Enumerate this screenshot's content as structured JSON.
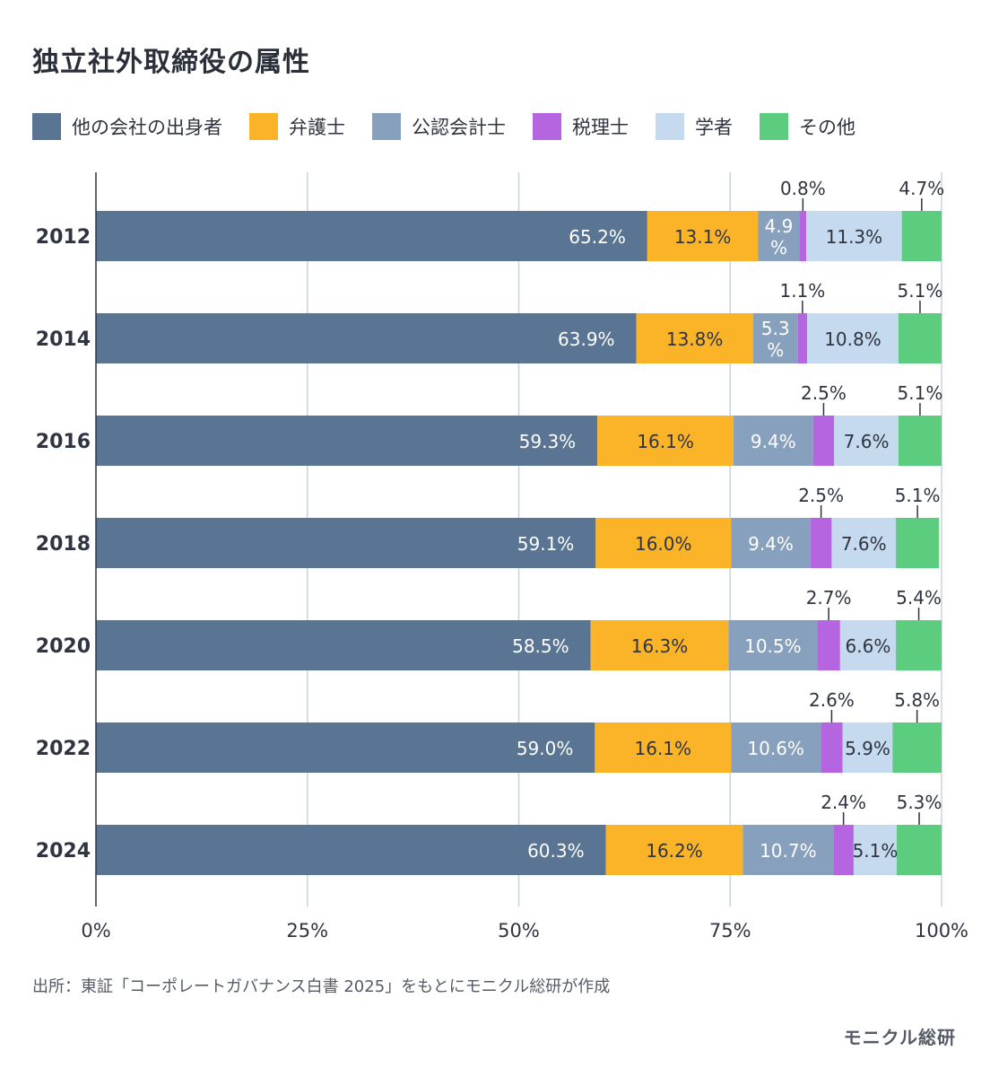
{
  "title": "独立社外取締役の属性",
  "legend": [
    {
      "label": "他の会社の出身者",
      "color": "#5a7594"
    },
    {
      "label": "弁護士",
      "color": "#fbb327"
    },
    {
      "label": "公認会計士",
      "color": "#87a0bd"
    },
    {
      "label": "税理士",
      "color": "#b565e0"
    },
    {
      "label": "学者",
      "color": "#c5d9ef"
    },
    {
      "label": "その他",
      "color": "#5ccc7e"
    }
  ],
  "chart_data": {
    "type": "bar",
    "orientation": "horizontal",
    "stacked": true,
    "categories": [
      "2012",
      "2014",
      "2016",
      "2018",
      "2020",
      "2022",
      "2024"
    ],
    "series": [
      {
        "name": "他の会社の出身者",
        "values": [
          65.2,
          63.9,
          59.3,
          59.1,
          58.5,
          59.0,
          60.3
        ],
        "labels": [
          "65.2%",
          "63.9%",
          "59.3%",
          "59.1%",
          "58.5%",
          "59.0%",
          "60.3%"
        ]
      },
      {
        "name": "弁護士",
        "values": [
          13.1,
          13.8,
          16.1,
          16.0,
          16.3,
          16.1,
          16.2
        ],
        "labels": [
          "13.1%",
          "13.8%",
          "16.1%",
          "16.0%",
          "16.3%",
          "16.1%",
          "16.2%"
        ]
      },
      {
        "name": "公認会計士",
        "values": [
          4.9,
          5.3,
          9.4,
          9.4,
          10.5,
          10.6,
          10.7
        ],
        "labels": [
          "4.9%",
          "5.3%",
          "9.4%",
          "9.4%",
          "10.5%",
          "10.6%",
          "10.7%"
        ]
      },
      {
        "name": "税理士",
        "values": [
          0.8,
          1.1,
          2.5,
          2.5,
          2.7,
          2.6,
          2.4
        ],
        "labels": [
          "0.8%",
          "1.1%",
          "2.5%",
          "2.5%",
          "2.7%",
          "2.6%",
          "2.4%"
        ]
      },
      {
        "name": "学者",
        "values": [
          11.3,
          10.8,
          7.6,
          7.6,
          6.6,
          5.9,
          5.1
        ],
        "labels": [
          "11.3%",
          "10.8%",
          "7.6%",
          "7.6%",
          "6.6%",
          "5.9%",
          "5.1%"
        ]
      },
      {
        "name": "その他",
        "values": [
          4.7,
          5.1,
          5.1,
          5.1,
          5.4,
          5.8,
          5.3
        ],
        "labels": [
          "4.7%",
          "5.1%",
          "5.1%",
          "5.1%",
          "5.4%",
          "5.8%",
          "5.3%"
        ]
      }
    ],
    "xlim": [
      0,
      100
    ],
    "xticks": [
      "0%",
      "25%",
      "50%",
      "75%",
      "100%"
    ],
    "grid": true
  },
  "source": "出所：東証「コーポレートガバナンス白書 2025」をもとにモニクル総研が作成",
  "brand": "モニクル総研"
}
